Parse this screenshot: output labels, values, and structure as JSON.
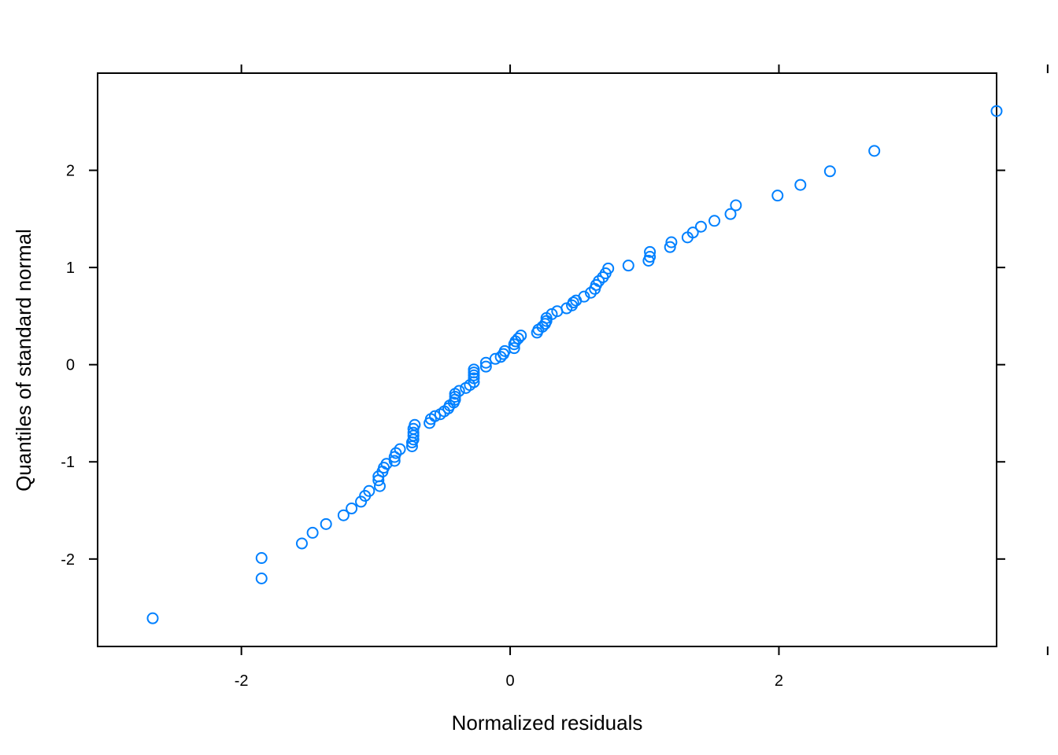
{
  "colors": {
    "point": "#0080FF",
    "frame": "#000000",
    "background": "#FFFFFF"
  },
  "chart_data": {
    "type": "scatter",
    "title": "",
    "xlabel": "Normalized residuals",
    "ylabel": "Quantiles of standard normal",
    "xlim": [
      -3.07,
      3.62
    ],
    "ylim": [
      -2.9,
      3.0
    ],
    "x_ticks": [
      -2,
      0,
      2,
      4
    ],
    "x_tick_labels": [
      "-2",
      "0",
      "2",
      ""
    ],
    "y_ticks": [
      -2,
      -1,
      0,
      1,
      2
    ],
    "y_tick_labels": [
      "-2",
      "-1",
      "0",
      "1",
      "2"
    ],
    "grid": false,
    "marker": "open-circle",
    "series": [
      {
        "points": [
          [
            -2.66,
            -2.61
          ],
          [
            -1.85,
            -2.2
          ],
          [
            -1.85,
            -1.99
          ],
          [
            -1.55,
            -1.84
          ],
          [
            -1.47,
            -1.73
          ],
          [
            -1.37,
            -1.64
          ],
          [
            -1.24,
            -1.55
          ],
          [
            -1.18,
            -1.48
          ],
          [
            -1.11,
            -1.41
          ],
          [
            -1.08,
            -1.35
          ],
          [
            -1.05,
            -1.3
          ],
          [
            -0.97,
            -1.25
          ],
          [
            -0.98,
            -1.19
          ],
          [
            -0.98,
            -1.15
          ],
          [
            -0.95,
            -1.1
          ],
          [
            -0.94,
            -1.06
          ],
          [
            -0.92,
            -1.02
          ],
          [
            -0.86,
            -0.99
          ],
          [
            -0.86,
            -0.95
          ],
          [
            -0.85,
            -0.91
          ],
          [
            -0.82,
            -0.87
          ],
          [
            -0.73,
            -0.84
          ],
          [
            -0.73,
            -0.8
          ],
          [
            -0.72,
            -0.77
          ],
          [
            -0.72,
            -0.73
          ],
          [
            -0.72,
            -0.7
          ],
          [
            -0.72,
            -0.66
          ],
          [
            -0.71,
            -0.62
          ],
          [
            -0.6,
            -0.6
          ],
          [
            -0.59,
            -0.56
          ],
          [
            -0.56,
            -0.53
          ],
          [
            -0.52,
            -0.51
          ],
          [
            -0.49,
            -0.48
          ],
          [
            -0.46,
            -0.45
          ],
          [
            -0.45,
            -0.42
          ],
          [
            -0.42,
            -0.39
          ],
          [
            -0.41,
            -0.36
          ],
          [
            -0.41,
            -0.33
          ],
          [
            -0.41,
            -0.3
          ],
          [
            -0.38,
            -0.27
          ],
          [
            -0.33,
            -0.24
          ],
          [
            -0.3,
            -0.21
          ],
          [
            -0.27,
            -0.18
          ],
          [
            -0.27,
            -0.14
          ],
          [
            -0.27,
            -0.11
          ],
          [
            -0.27,
            -0.08
          ],
          [
            -0.27,
            -0.05
          ],
          [
            -0.18,
            -0.02
          ],
          [
            -0.18,
            0.02
          ],
          [
            -0.11,
            0.06
          ],
          [
            -0.07,
            0.08
          ],
          [
            -0.05,
            0.11
          ],
          [
            -0.04,
            0.14
          ],
          [
            0.03,
            0.17
          ],
          [
            0.03,
            0.21
          ],
          [
            0.04,
            0.24
          ],
          [
            0.06,
            0.27
          ],
          [
            0.08,
            0.3
          ],
          [
            0.2,
            0.33
          ],
          [
            0.21,
            0.36
          ],
          [
            0.24,
            0.39
          ],
          [
            0.26,
            0.42
          ],
          [
            0.27,
            0.45
          ],
          [
            0.27,
            0.48
          ],
          [
            0.31,
            0.52
          ],
          [
            0.35,
            0.55
          ],
          [
            0.42,
            0.58
          ],
          [
            0.46,
            0.61
          ],
          [
            0.47,
            0.64
          ],
          [
            0.49,
            0.66
          ],
          [
            0.55,
            0.7
          ],
          [
            0.6,
            0.74
          ],
          [
            0.63,
            0.78
          ],
          [
            0.64,
            0.82
          ],
          [
            0.66,
            0.86
          ],
          [
            0.69,
            0.9
          ],
          [
            0.71,
            0.94
          ],
          [
            0.73,
            0.99
          ],
          [
            0.88,
            1.02
          ],
          [
            1.03,
            1.07
          ],
          [
            1.04,
            1.11
          ],
          [
            1.04,
            1.16
          ],
          [
            1.19,
            1.21
          ],
          [
            1.2,
            1.26
          ],
          [
            1.32,
            1.31
          ],
          [
            1.36,
            1.36
          ],
          [
            1.42,
            1.42
          ],
          [
            1.52,
            1.48
          ],
          [
            1.64,
            1.55
          ],
          [
            1.68,
            1.64
          ],
          [
            1.99,
            1.74
          ],
          [
            2.16,
            1.85
          ],
          [
            2.38,
            1.99
          ],
          [
            2.71,
            2.2
          ],
          [
            3.62,
            2.61
          ]
        ]
      }
    ]
  }
}
